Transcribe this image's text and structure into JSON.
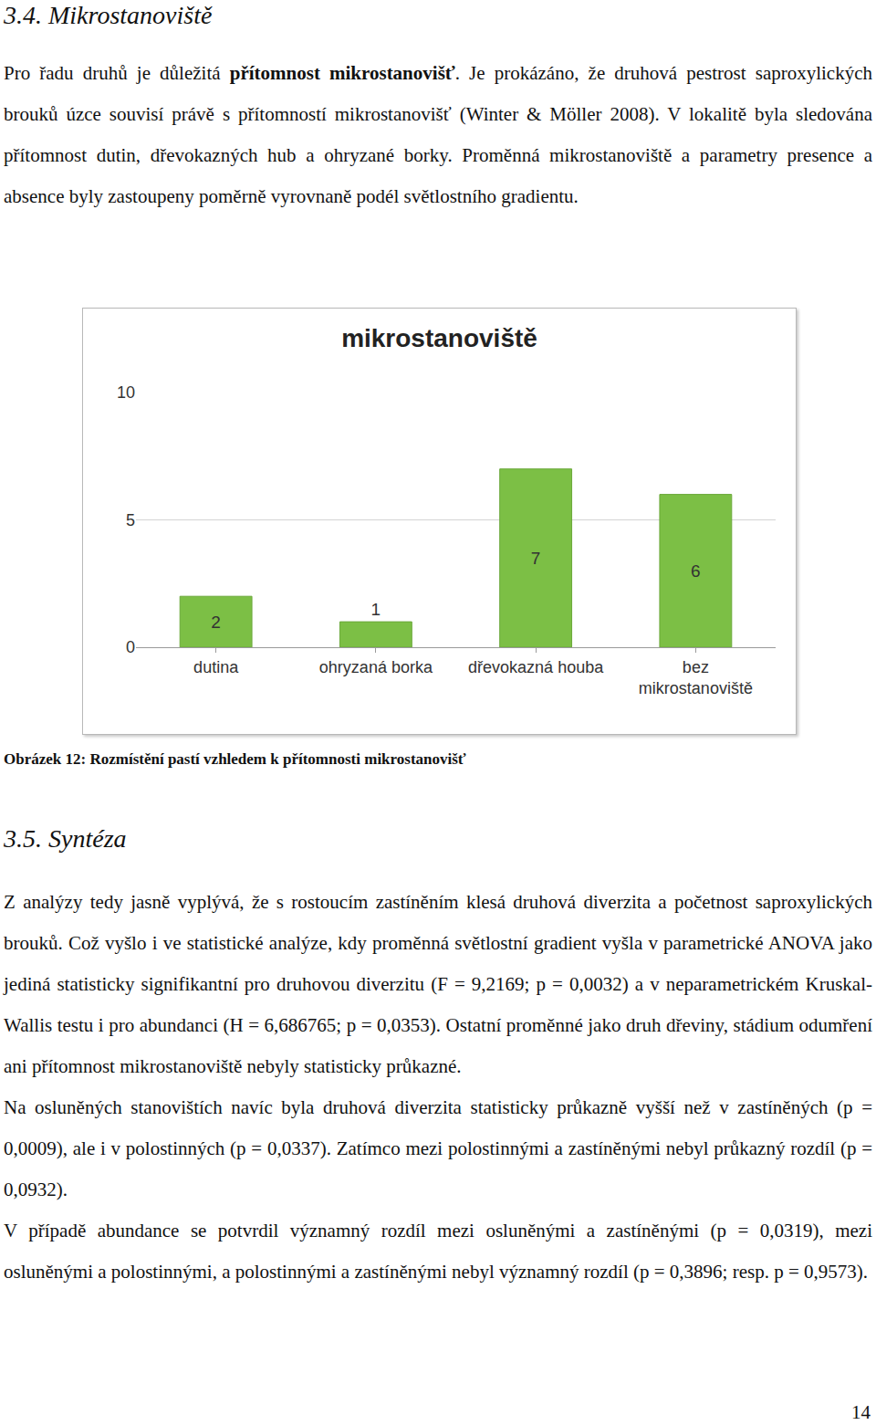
{
  "heading1": "3.4. Mikrostanoviště",
  "paragraph1": [
    {
      "text": "Pro řadu druhů je důležitá ",
      "bold": false
    },
    {
      "text": "přítomnost mikrostanovišť",
      "bold": true
    },
    {
      "text": ". Je prokázáno, že druhová pestrost saproxylických brouků úzce souvisí právě s přítomností mikrostanovišť (Winter & Möller 2008). V lokalitě byla sledována přítomnost dutin, dřevokazných hub a ohryzané borky. Proměnná mikrostanoviště a parametry presence a absence byly zastoupeny poměrně vyrovnaně podél světlostního gradientu.",
      "bold": false
    }
  ],
  "chart_data": {
    "type": "bar",
    "title": "mikrostanoviště",
    "categories": [
      "dutina",
      "ohryzaná borka",
      "dřevokazná houba",
      "bez mikrostanoviště"
    ],
    "values": [
      2,
      1,
      7,
      6
    ],
    "color": "#7cbf45",
    "ylim": [
      0,
      10
    ],
    "yticks": [
      0,
      5,
      10
    ],
    "grid": true,
    "data_labels": true
  },
  "caption": "Obrázek 12: Rozmístění pastí vzhledem k přítomnosti mikrostanovišť",
  "heading2": "3.5. Syntéza",
  "section2": [
    "Z analýzy tedy jasně vyplývá, že s rostoucím zastíněním klesá druhová diverzita a početnost saproxylických brouků. Což vyšlo i ve statistické analýze, kdy proměnná světlostní gradient vyšla v parametrické ANOVA jako jediná statisticky signifikantní pro druhovou diverzitu (F = 9,2169; p = 0,0032) a v neparametrickém Kruskal-Wallis testu i pro abundanci (H = 6,686765; p = 0,0353). Ostatní proměnné jako druh dřeviny, stádium odumření ani přítomnost mikrostanoviště nebyly statisticky průkazné.",
    "Na osluněných stanovištích navíc byla druhová diverzita statisticky průkazně vyšší než v zastíněných (p = 0,0009), ale i v polostinných (p = 0,0337). Zatímco mezi polostinnými a zastíněnými nebyl průkazný rozdíl (p = 0,0932).",
    "V případě abundance se potvrdil významný rozdíl mezi osluněnými a zastíněnými (p = 0,0319), mezi osluněnými a polostinnými, a polostinnými a zastíněnými nebyl významný rozdíl (p = 0,3896; resp. p = 0,9573)."
  ],
  "page_number": "14"
}
